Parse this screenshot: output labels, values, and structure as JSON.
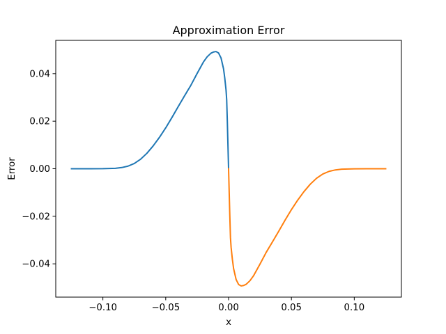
{
  "chart_data": {
    "type": "line",
    "title": "Approximation Error",
    "xlabel": "x",
    "ylabel": "Error",
    "xlim": [
      -0.1375,
      0.1375
    ],
    "ylim": [
      -0.054,
      0.054
    ],
    "xticks": [
      -0.1,
      -0.05,
      0.0,
      0.05,
      0.1
    ],
    "xtick_labels": [
      "−0.10",
      "−0.05",
      "0.00",
      "0.05",
      "0.10"
    ],
    "yticks": [
      -0.04,
      -0.02,
      0.0,
      0.02,
      0.04
    ],
    "ytick_labels": [
      "−0.04",
      "−0.02",
      "0.00",
      "0.02",
      "0.04"
    ],
    "grid": false,
    "legend": "none",
    "series": [
      {
        "color": "#1f77b4",
        "x": [
          -0.125,
          -0.11,
          -0.1,
          -0.09,
          -0.085,
          -0.08,
          -0.075,
          -0.07,
          -0.065,
          -0.06,
          -0.055,
          -0.05,
          -0.045,
          -0.04,
          -0.035,
          -0.03,
          -0.025,
          -0.02,
          -0.017,
          -0.014,
          -0.012,
          -0.01,
          -0.008,
          -0.006,
          -0.004,
          -0.003,
          -0.002,
          -0.0015,
          -0.001,
          -0.0005,
          0.0
        ],
        "y": [
          0.0,
          0.0,
          2e-05,
          0.0002,
          0.0005,
          0.0011,
          0.0022,
          0.004,
          0.0065,
          0.0096,
          0.0132,
          0.0172,
          0.0216,
          0.0262,
          0.0307,
          0.0351,
          0.0401,
          0.0449,
          0.0471,
          0.0486,
          0.0491,
          0.0493,
          0.0487,
          0.0466,
          0.042,
          0.038,
          0.033,
          0.029,
          0.02,
          0.01,
          0.0
        ]
      },
      {
        "color": "#ff7f0e",
        "x": [
          0.0,
          0.0005,
          0.001,
          0.0015,
          0.002,
          0.003,
          0.004,
          0.006,
          0.008,
          0.01,
          0.012,
          0.014,
          0.017,
          0.02,
          0.025,
          0.03,
          0.035,
          0.04,
          0.045,
          0.05,
          0.055,
          0.06,
          0.065,
          0.07,
          0.075,
          0.08,
          0.085,
          0.09,
          0.1,
          0.11,
          0.125
        ],
        "y": [
          0.0,
          -0.01,
          -0.02,
          -0.029,
          -0.033,
          -0.038,
          -0.042,
          -0.0466,
          -0.0487,
          -0.0493,
          -0.0491,
          -0.0486,
          -0.0471,
          -0.0449,
          -0.0401,
          -0.0351,
          -0.0307,
          -0.0262,
          -0.0216,
          -0.0172,
          -0.0132,
          -0.0096,
          -0.0065,
          -0.004,
          -0.0022,
          -0.0011,
          -0.0005,
          -0.0002,
          -2e-05,
          0.0,
          0.0
        ]
      }
    ]
  }
}
